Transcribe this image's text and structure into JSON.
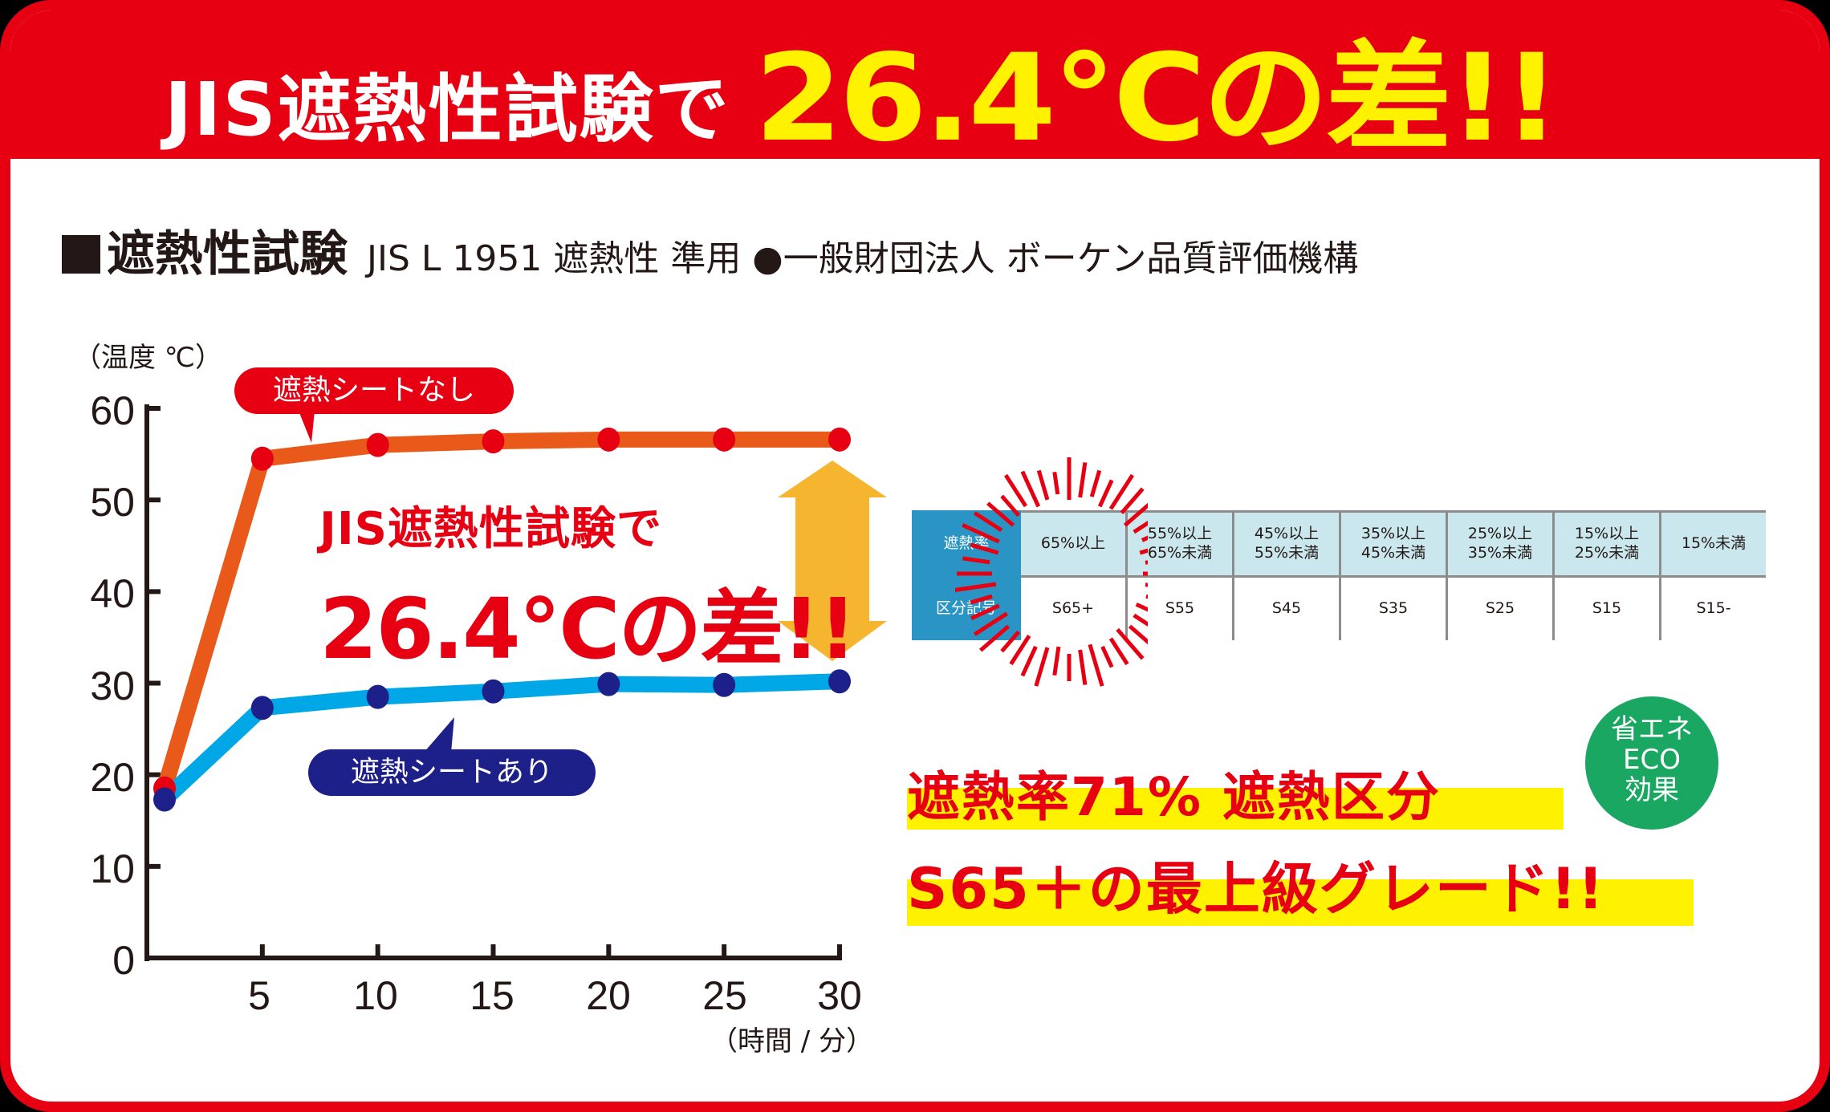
{
  "banner": {
    "lead": "JIS遮熱性試験で",
    "highlight": "26.4℃の差!!"
  },
  "section": {
    "title": "遮熱性試験",
    "subtitle": "JIS L 1951 遮熱性 準用 ●一般財団法人 ボーケン品質評価機構"
  },
  "chart": {
    "ylabel": "（温度 ℃）",
    "xlabel": "（時間 / 分）",
    "yticks": [
      "60",
      "50",
      "40",
      "30",
      "20",
      "10",
      "0"
    ],
    "xticks": [
      "5",
      "10",
      "15",
      "20",
      "25",
      "30"
    ],
    "callout_without": "遮熱シートなし",
    "callout_with": "遮熱シートあり",
    "annotation_line1": "JIS遮熱性試験で",
    "annotation_line2": "26.4℃の差!!"
  },
  "chart_data": {
    "type": "line",
    "title": "遮熱性試験 JIS L 1951 遮熱性 準用",
    "xlabel": "時間 / 分",
    "ylabel": "温度 ℃",
    "x": [
      0,
      5,
      10,
      15,
      20,
      25,
      30
    ],
    "xlim": [
      0,
      30
    ],
    "ylim": [
      0,
      60
    ],
    "xticks": [
      5,
      10,
      15,
      20,
      25,
      30
    ],
    "yticks": [
      0,
      10,
      20,
      30,
      40,
      50,
      60
    ],
    "grid": false,
    "series": [
      {
        "name": "遮熱シートなし",
        "color": "#e8591a",
        "marker_color": "#e60012",
        "values": [
          18.5,
          54.5,
          56.0,
          56.4,
          56.6,
          56.6,
          56.6
        ]
      },
      {
        "name": "遮熱シートあり",
        "color": "#00a7e6",
        "marker_color": "#1d2088",
        "values": [
          17.3,
          27.3,
          28.5,
          29.1,
          29.9,
          29.8,
          30.2
        ]
      }
    ],
    "annotations": [
      "JIS遮熱性試験で 26.4℃の差!!"
    ],
    "difference_at_30": 26.4
  },
  "grade_table": {
    "row_headers": [
      "遮熱率",
      "区分記号"
    ],
    "rates": [
      "65%以上",
      "55%以上\n65%未満",
      "45%以上\n55%未満",
      "35%以上\n45%未満",
      "25%以上\n35%未満",
      "15%以上\n25%未満",
      "15%未満"
    ],
    "codes": [
      "S65+",
      "S55",
      "S45",
      "S35",
      "S25",
      "S15",
      "S15-"
    ],
    "highlighted_index": 0
  },
  "headline": {
    "line1": "遮熱率71% 遮熱区分",
    "line2": "S65＋の最上級グレード!!"
  },
  "eco_badge": {
    "line1": "省エネ",
    "line2": "ECO",
    "line3": "効果"
  },
  "colors": {
    "brand_red": "#e60012",
    "yellow": "#fff200",
    "orange_line": "#e8591a",
    "blue_line": "#00a7e6",
    "navy": "#1d2088",
    "arrow": "#f6b52e",
    "table_header": "#2a95c4",
    "table_rate_bg": "#c9e7ec",
    "eco_green": "#19a762"
  }
}
